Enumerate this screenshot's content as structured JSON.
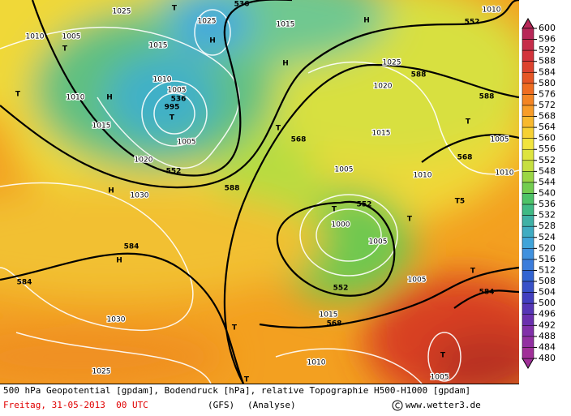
{
  "map": {
    "labels": [
      "1025",
      "T",
      "536",
      "1010",
      "1005",
      "T",
      "1025",
      "H",
      "1015",
      "1015",
      "H",
      "H",
      "552",
      "1010",
      "1010",
      "H",
      "1010",
      "1005",
      "536",
      "995",
      "T",
      "1015",
      "1020",
      "552",
      "1005",
      "588",
      "1025",
      "1020",
      "568",
      "T",
      "1015",
      "588",
      "T",
      "1005",
      "568",
      "1005",
      "1010",
      "1010",
      "H",
      "588",
      "1030",
      "T",
      "552",
      "1000",
      "T",
      "T5",
      "584",
      "H",
      "1005",
      "552",
      "584",
      "1005",
      "T",
      "584",
      "1030",
      "1015",
      "568",
      "T",
      "T",
      "1010",
      "1025",
      "1005",
      "T",
      "T"
    ]
  },
  "colorbar": {
    "labels": [
      600,
      596,
      592,
      588,
      584,
      580,
      576,
      572,
      568,
      564,
      560,
      556,
      552,
      548,
      544,
      540,
      536,
      532,
      528,
      524,
      520,
      516,
      512,
      508,
      504,
      500,
      496,
      492,
      488,
      484,
      480
    ]
  },
  "footer": {
    "description": "500 hPa Geopotential [gpdam], Bodendruck [hPa], relative Topographie H500-H1000 [gpdam]",
    "date": "Freitag, 31-05-2013  00 UTC",
    "model": "(GFS)",
    "run": "(Analyse)",
    "source": "www.wetter3.de"
  }
}
